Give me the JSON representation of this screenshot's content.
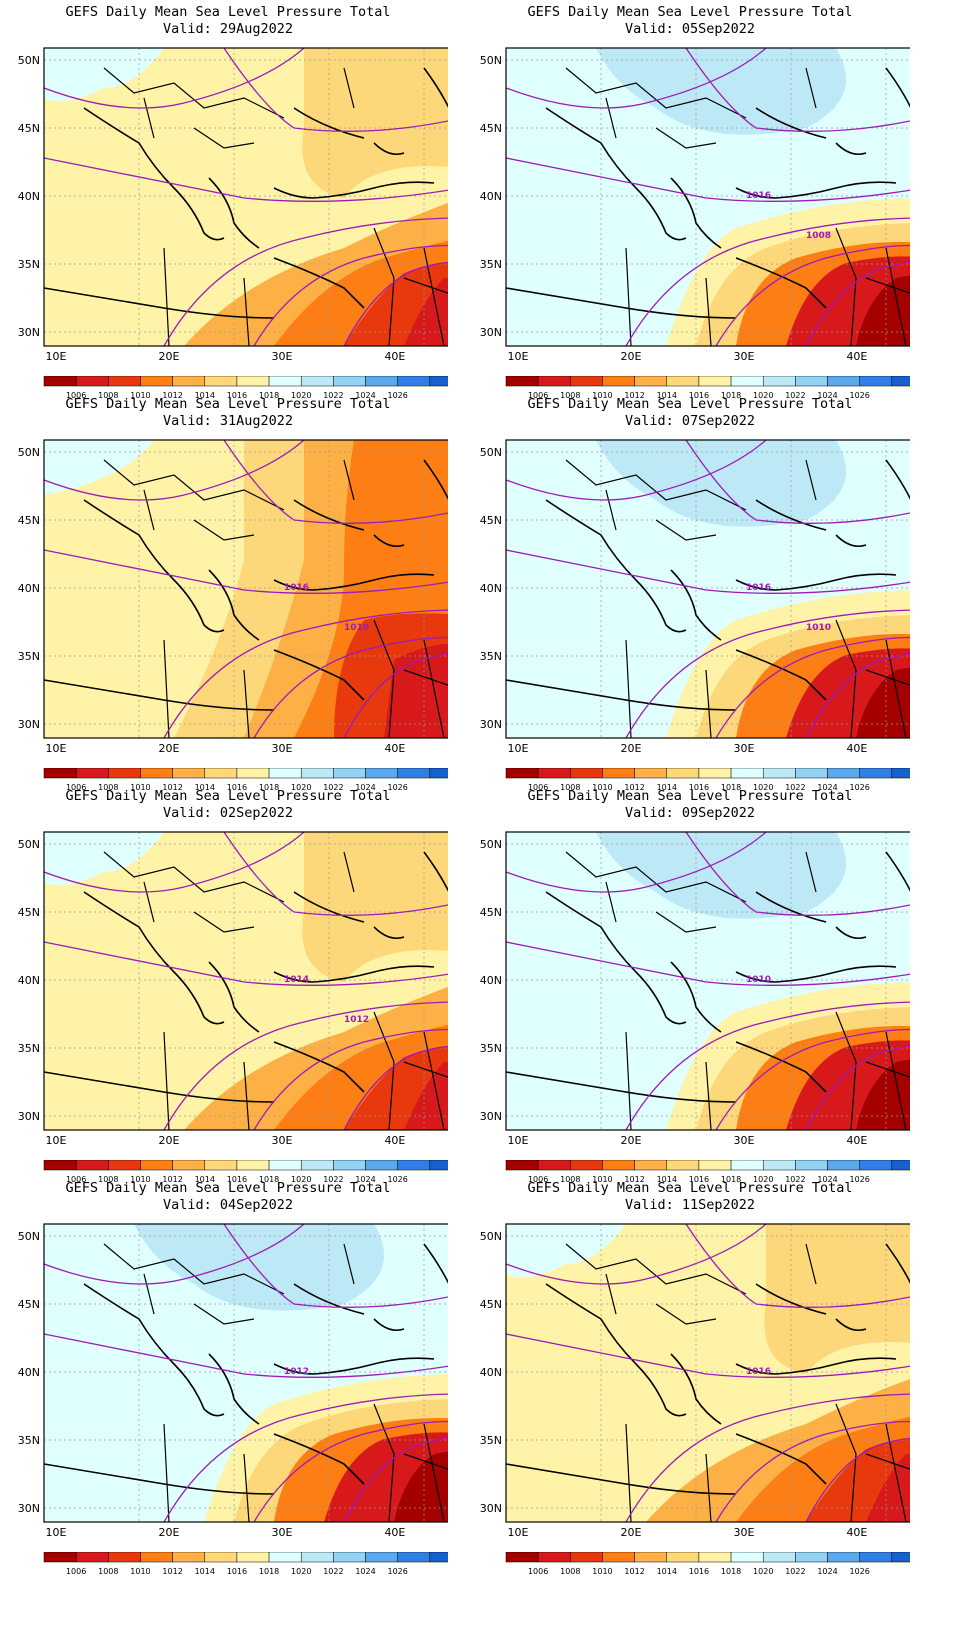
{
  "title_line": "GEFS Daily Mean Sea Level Pressure Total",
  "panels": [
    {
      "valid": "Valid: 29Aug2022",
      "contour_labels": [],
      "variant": "warm"
    },
    {
      "valid": "Valid: 05Sep2022",
      "contour_labels": [
        "1016",
        "1008"
      ],
      "variant": "cool"
    },
    {
      "valid": "Valid: 31Aug2022",
      "contour_labels": [
        "1016",
        "1010"
      ],
      "variant": "hot"
    },
    {
      "valid": "Valid: 07Sep2022",
      "contour_labels": [
        "1016",
        "1010"
      ],
      "variant": "cool"
    },
    {
      "valid": "Valid: 02Sep2022",
      "contour_labels": [
        "1014",
        "1012"
      ],
      "variant": "warm"
    },
    {
      "valid": "Valid: 09Sep2022",
      "contour_labels": [
        "1010"
      ],
      "variant": "cool"
    },
    {
      "valid": "Valid: 04Sep2022",
      "contour_labels": [
        "1012"
      ],
      "variant": "cool"
    },
    {
      "valid": "Valid: 11Sep2022",
      "contour_labels": [
        "1016"
      ],
      "variant": "warm"
    }
  ],
  "lon_labels": [
    "10E",
    "20E",
    "30E",
    "40E"
  ],
  "lat_labels": [
    "50N",
    "45N",
    "40N",
    "35N",
    "30N"
  ],
  "colorbar": {
    "labels": [
      "1006",
      "1008",
      "1010",
      "1012",
      "1014",
      "1016",
      "1018",
      "1020",
      "1022",
      "1024",
      "1026"
    ],
    "colors": [
      "#a50000",
      "#d7191c",
      "#e8380d",
      "#fd7e14",
      "#fdb045",
      "#fdd87a",
      "#fff3a8",
      "#e0ffff",
      "#bde9f7",
      "#92d2f2",
      "#5ba8ec",
      "#2f7fe6",
      "#1560cc"
    ]
  },
  "contour_color": "#9e1bb8"
}
